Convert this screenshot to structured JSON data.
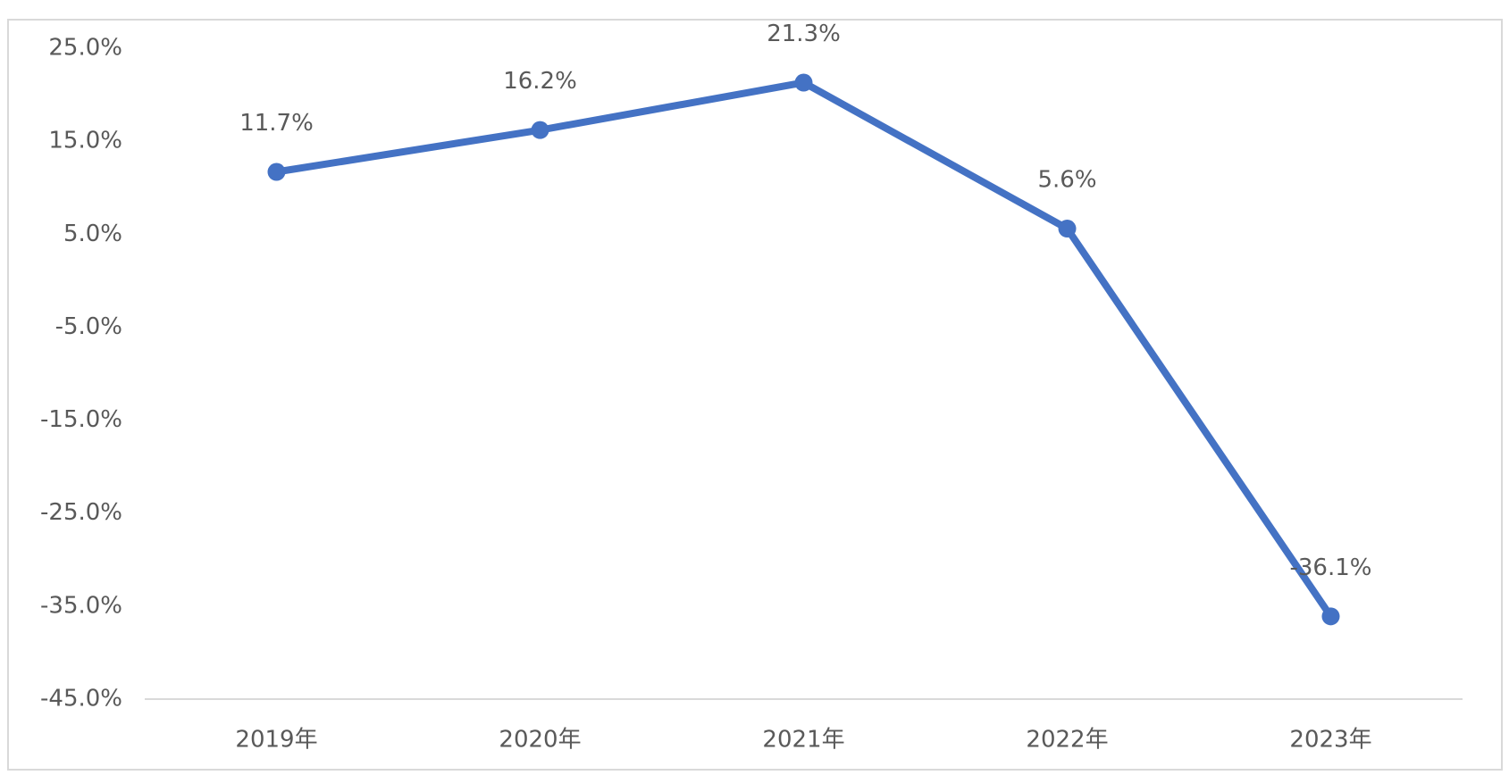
{
  "chart_data": {
    "type": "line",
    "categories": [
      "2019年",
      "2020年",
      "2021年",
      "2022年",
      "2023年"
    ],
    "values": [
      11.7,
      16.2,
      21.3,
      5.6,
      -36.1
    ],
    "value_labels": [
      "11.7%",
      "16.2%",
      "21.3%",
      "5.6%",
      "-36.1%"
    ],
    "color": "#4472c4",
    "ylim": [
      -45,
      25
    ],
    "yticks": [
      {
        "value": 25,
        "label": "25.0%"
      },
      {
        "value": 15,
        "label": "15.0%"
      },
      {
        "value": 5,
        "label": "5.0%"
      },
      {
        "value": -5,
        "label": "-5.0%"
      },
      {
        "value": -15,
        "label": "-15.0%"
      },
      {
        "value": -25,
        "label": "-25.0%"
      },
      {
        "value": -35,
        "label": "-35.0%"
      },
      {
        "value": -45,
        "label": "-45.0%"
      }
    ],
    "grid": false
  }
}
